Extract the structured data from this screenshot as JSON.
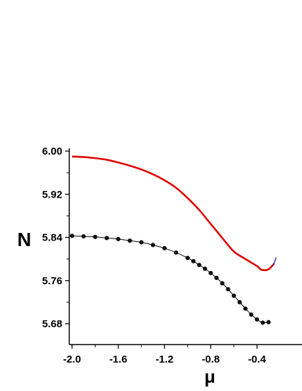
{
  "chart_data": {
    "type": "line",
    "title": "",
    "xlabel": "μ",
    "ylabel": "N",
    "xlim": [
      -2.05,
      -0.2
    ],
    "ylim": [
      5.65,
      6.0
    ],
    "x_ticks": [
      -2.0,
      -1.6,
      -1.2,
      -0.8,
      -0.4
    ],
    "x_tick_labels": [
      "-2.0",
      "-1.6",
      "-1.2",
      "-0.8",
      "-0.4"
    ],
    "y_ticks": [
      6.0,
      5.92,
      5.84,
      5.76,
      5.68
    ],
    "y_tick_labels": [
      "6.00",
      "5.92",
      "5.84",
      "5.76",
      "5.68"
    ],
    "grid": false,
    "legend": "none",
    "series": [
      {
        "color": "#e00000",
        "marker": "none",
        "points": [
          [
            -2.0,
            5.99
          ],
          [
            -1.9,
            5.989
          ],
          [
            -1.8,
            5.987
          ],
          [
            -1.7,
            5.984
          ],
          [
            -1.6,
            5.979
          ],
          [
            -1.5,
            5.973
          ],
          [
            -1.4,
            5.966
          ],
          [
            -1.3,
            5.957
          ],
          [
            -1.2,
            5.946
          ],
          [
            -1.1,
            5.932
          ],
          [
            -1.0,
            5.913
          ],
          [
            -0.9,
            5.891
          ],
          [
            -0.8,
            5.865
          ],
          [
            -0.7,
            5.839
          ],
          [
            -0.6,
            5.814
          ],
          [
            -0.5,
            5.8
          ],
          [
            -0.4,
            5.787
          ],
          [
            -0.36,
            5.78
          ],
          [
            -0.3,
            5.781
          ],
          [
            -0.25,
            5.792
          ]
        ]
      },
      {
        "color": "#000000",
        "marker": "circle",
        "points": [
          [
            -2.0,
            5.843
          ],
          [
            -1.9,
            5.842
          ],
          [
            -1.8,
            5.841
          ],
          [
            -1.7,
            5.839
          ],
          [
            -1.6,
            5.837
          ],
          [
            -1.5,
            5.834
          ],
          [
            -1.4,
            5.831
          ],
          [
            -1.3,
            5.826
          ],
          [
            -1.2,
            5.82
          ],
          [
            -1.1,
            5.812
          ],
          [
            -1.0,
            5.802
          ],
          [
            -0.95,
            5.796
          ],
          [
            -0.9,
            5.789
          ],
          [
            -0.85,
            5.782
          ],
          [
            -0.8,
            5.774
          ],
          [
            -0.75,
            5.765
          ],
          [
            -0.7,
            5.755
          ],
          [
            -0.65,
            5.744
          ],
          [
            -0.6,
            5.732
          ],
          [
            -0.55,
            5.72
          ],
          [
            -0.5,
            5.708
          ],
          [
            -0.45,
            5.697
          ],
          [
            -0.4,
            5.688
          ],
          [
            -0.35,
            5.682
          ],
          [
            -0.3,
            5.683
          ]
        ]
      }
    ]
  }
}
